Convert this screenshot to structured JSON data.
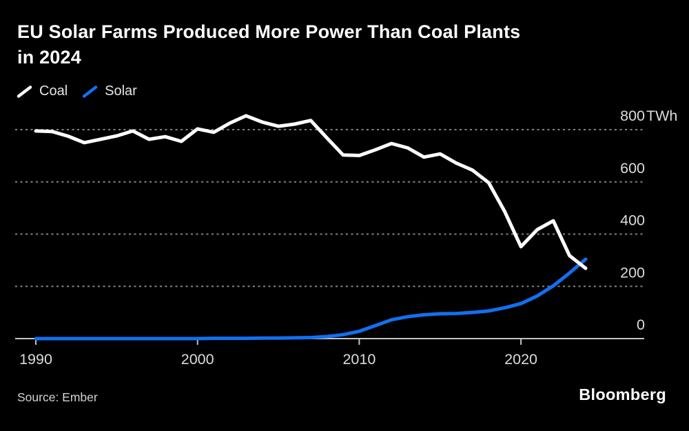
{
  "header": {
    "title": "EU Solar Farms Produced More Power Than Coal Plants\nin 2024"
  },
  "legend": {
    "items": [
      {
        "label": "Coal",
        "color": "#ffffff"
      },
      {
        "label": "Solar",
        "color": "#1270f0"
      }
    ]
  },
  "chart_data": {
    "type": "line",
    "unit": "TWh",
    "title": "EU Solar Farms Produced More Power Than Coal Plants in 2024",
    "xlabel": "",
    "ylabel": "TWh",
    "ylim": [
      0,
      880
    ],
    "y_ticks": [
      0,
      200,
      400,
      600,
      800
    ],
    "x_ticks": [
      1990,
      2000,
      2010,
      2020
    ],
    "grid": "dashed-horizontal",
    "legend_position": "top-left",
    "x": [
      1990,
      1991,
      1992,
      1993,
      1994,
      1995,
      1996,
      1997,
      1998,
      1999,
      2000,
      2001,
      2002,
      2003,
      2004,
      2005,
      2006,
      2007,
      2008,
      2009,
      2010,
      2011,
      2012,
      2013,
      2014,
      2015,
      2016,
      2017,
      2018,
      2019,
      2020,
      2021,
      2022,
      2023,
      2024
    ],
    "series": [
      {
        "name": "Coal",
        "color": "#ffffff",
        "values": [
          795,
          793,
          775,
          750,
          763,
          776,
          795,
          763,
          773,
          755,
          803,
          790,
          825,
          853,
          829,
          813,
          821,
          835,
          768,
          703,
          701,
          723,
          747,
          730,
          695,
          707,
          672,
          645,
          597,
          486,
          352,
          417,
          451,
          318,
          269
        ]
      },
      {
        "name": "Solar",
        "color": "#1270f0",
        "values": [
          0,
          0,
          0,
          0,
          0,
          0,
          0,
          0,
          0,
          0,
          0,
          1,
          1,
          1,
          2,
          2,
          3,
          4,
          8,
          15,
          28,
          50,
          72,
          84,
          91,
          95,
          96,
          100,
          106,
          118,
          134,
          163,
          202,
          251,
          304
        ]
      }
    ]
  },
  "colors": {
    "background": "#000000",
    "accent_blue": "#1270f0",
    "axis_labels": "#dcdcdc",
    "gridline": "#858585",
    "baseline": "#c6c6c6"
  },
  "footer": {
    "source": "Source: Ember",
    "brand": "Bloomberg"
  }
}
